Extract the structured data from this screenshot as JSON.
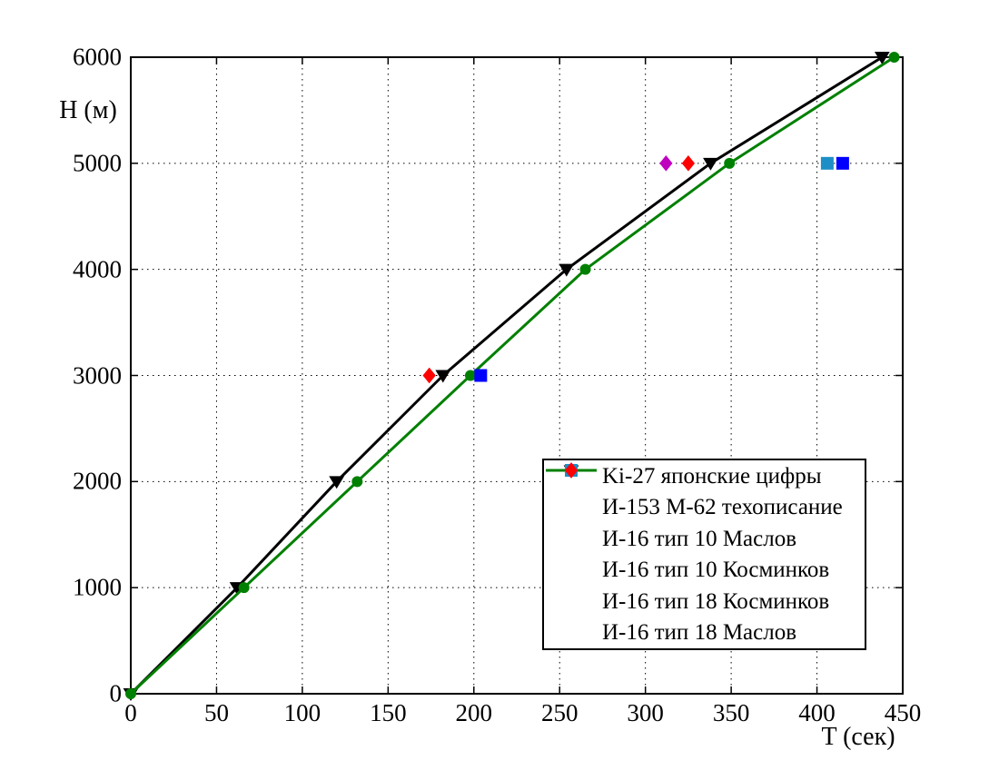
{
  "chart_data": {
    "type": "line",
    "title": "",
    "xlabel": "T (сек)",
    "ylabel": "H (м)",
    "xlim": [
      0,
      450
    ],
    "ylim": [
      0,
      6000
    ],
    "xticks": [
      0,
      50,
      100,
      150,
      200,
      250,
      300,
      350,
      400,
      450
    ],
    "yticks": [
      0,
      1000,
      2000,
      3000,
      4000,
      5000,
      6000
    ],
    "grid": "dotted-black",
    "legend_position": "inside-lower-right",
    "series": [
      {
        "name": "Ki-27 японские цифры",
        "draw": "line",
        "color": "#000000",
        "marker": "triangle-down",
        "points": [
          [
            0,
            0
          ],
          [
            62,
            1000
          ],
          [
            120,
            2000
          ],
          [
            182,
            3000
          ],
          [
            254,
            4000
          ],
          [
            338,
            5000
          ],
          [
            438,
            6000
          ]
        ]
      },
      {
        "name": "И-153 М-62 техописание",
        "draw": "line",
        "color": "#008000",
        "marker": "circle",
        "points": [
          [
            0,
            0
          ],
          [
            66,
            1000
          ],
          [
            132,
            2000
          ],
          [
            198,
            3000
          ],
          [
            265,
            4000
          ],
          [
            349,
            5000
          ],
          [
            445,
            6000
          ]
        ]
      },
      {
        "name": "И-16 тип 10 Маслов",
        "draw": "scatter",
        "color": "#0000ff",
        "marker": "square",
        "points": [
          [
            204,
            3000
          ],
          [
            415,
            5000
          ]
        ]
      },
      {
        "name": "И-16 тип 10 Косминков",
        "draw": "scatter",
        "color": "#1e8fc6",
        "marker": "square",
        "points": [
          [
            406,
            5000
          ]
        ]
      },
      {
        "name": "И-16 тип 18 Косминков",
        "draw": "scatter",
        "color": "#bf00bf",
        "marker": "diamond",
        "points": [
          [
            312,
            5000
          ]
        ]
      },
      {
        "name": "И-16 тип 18 Маслов",
        "draw": "scatter",
        "color": "#ff0000",
        "marker": "diamond",
        "points": [
          [
            174,
            3000
          ],
          [
            325,
            5000
          ]
        ]
      }
    ]
  }
}
